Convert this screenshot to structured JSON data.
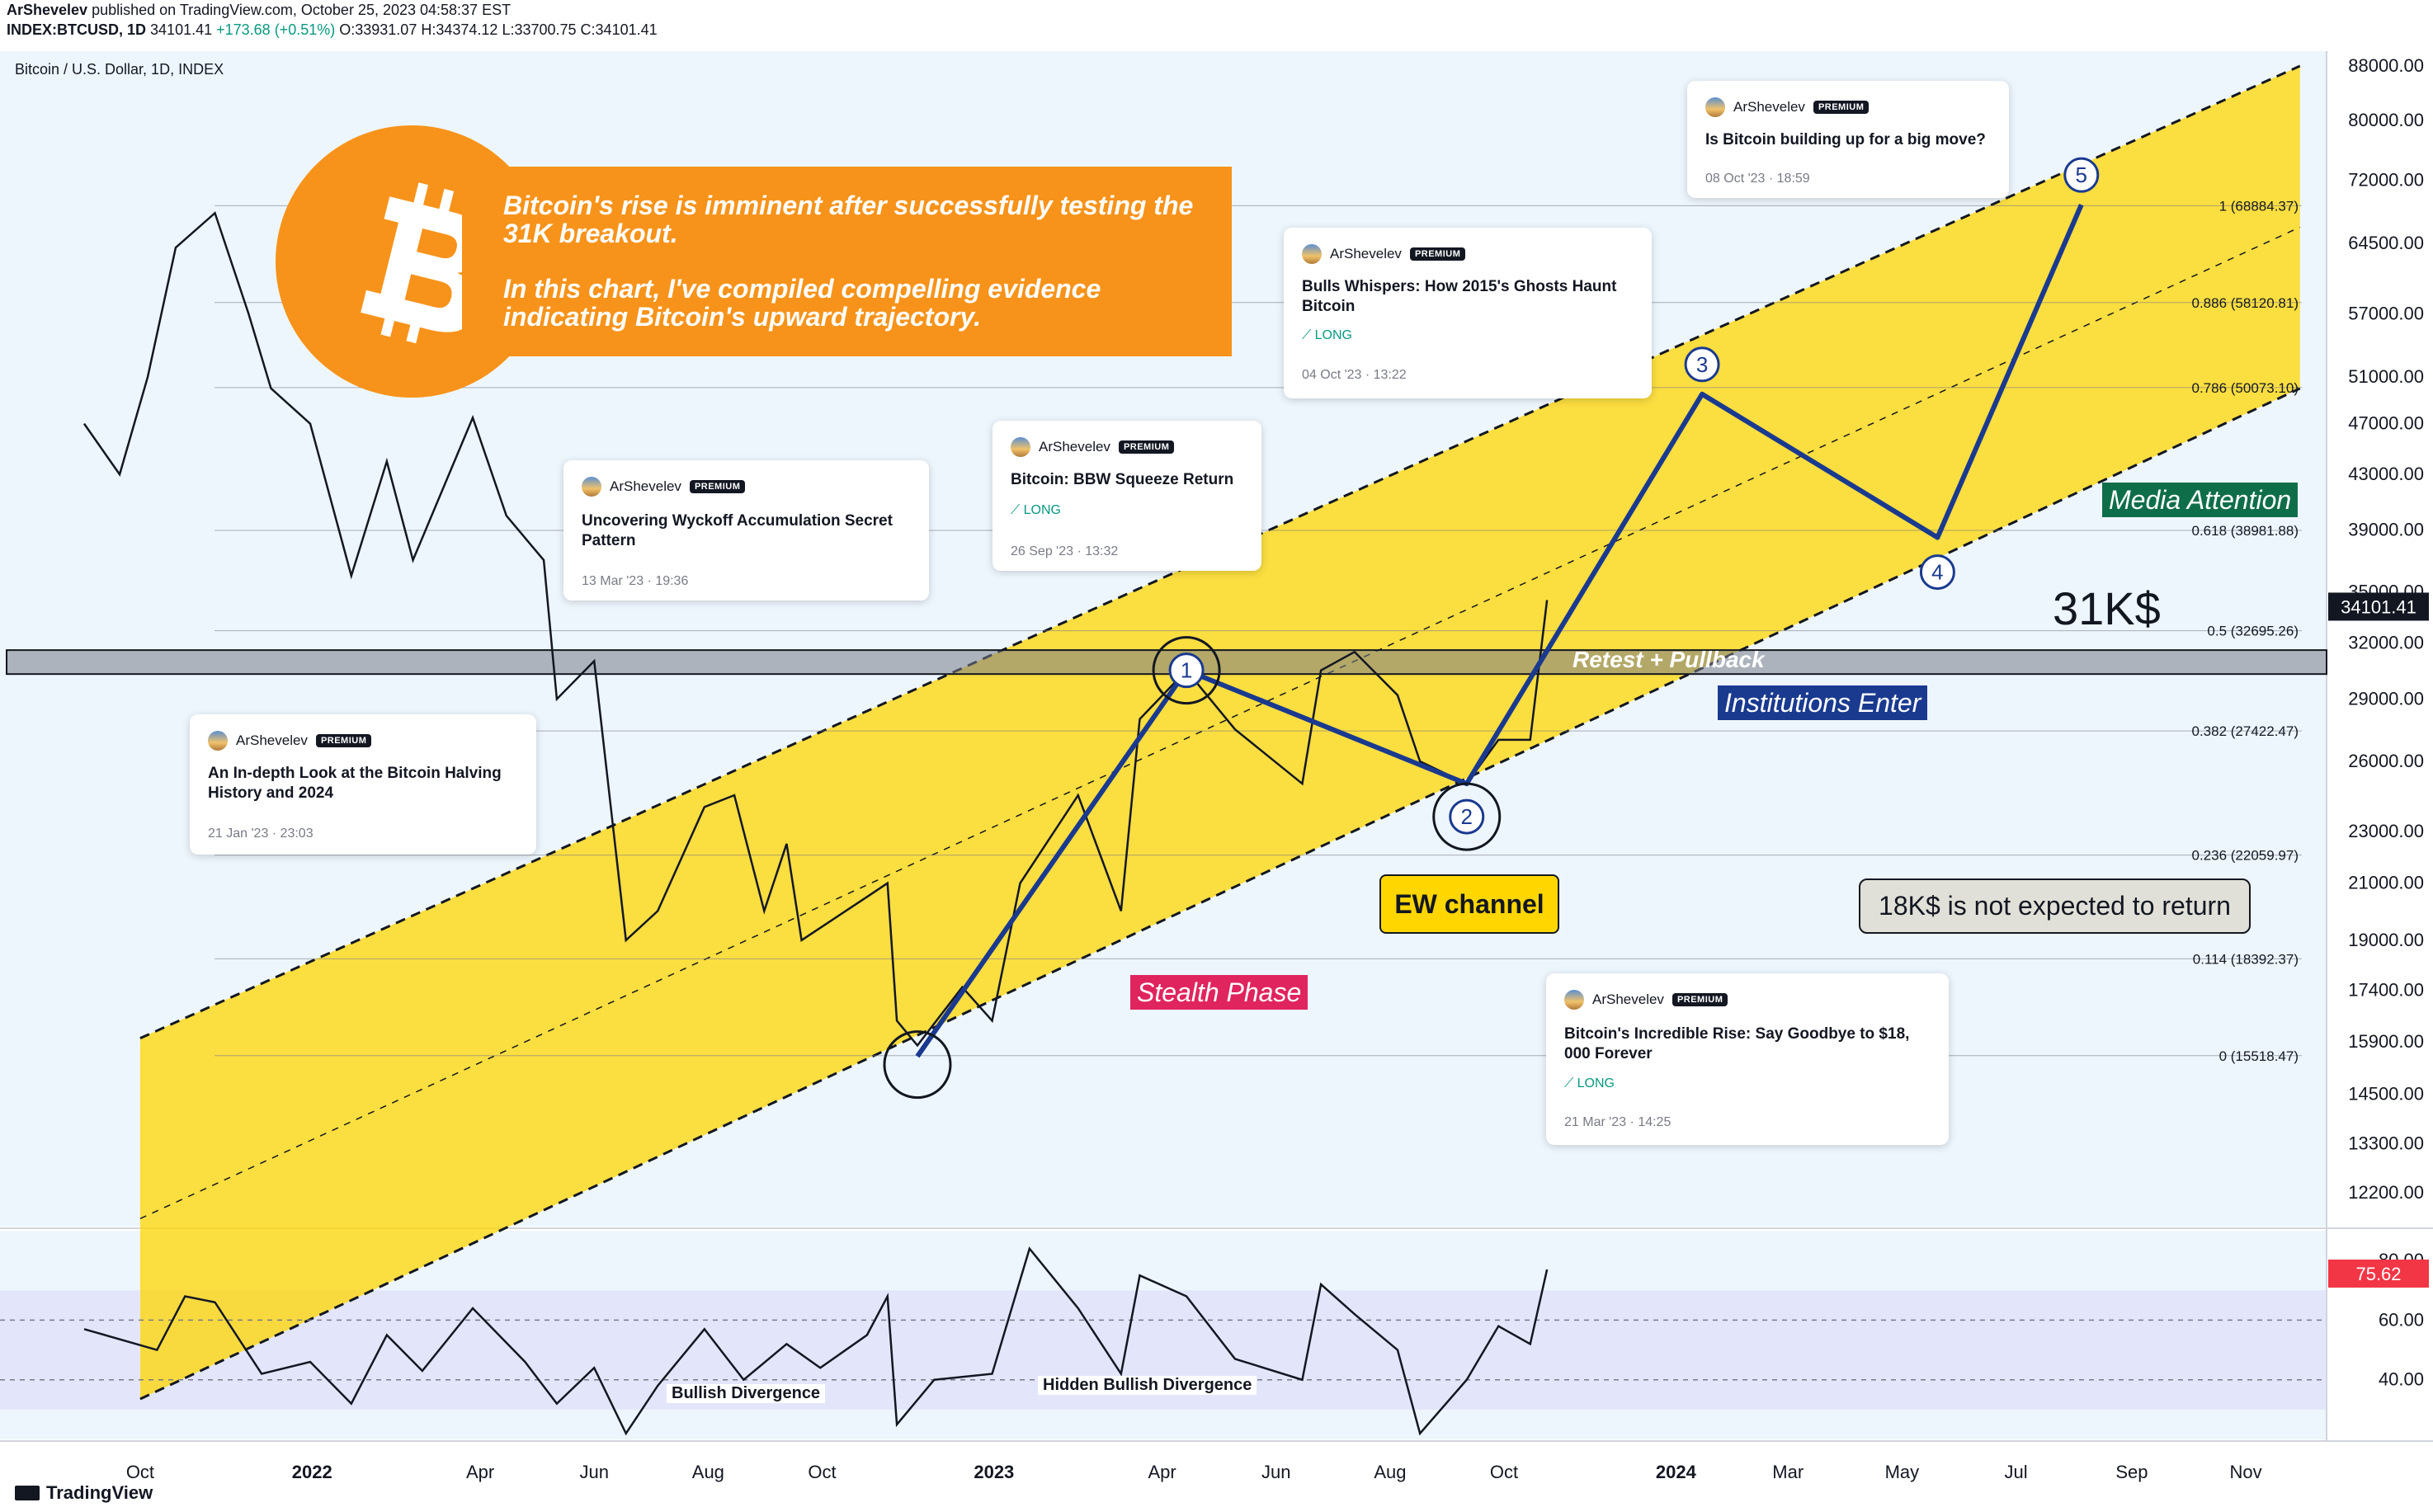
{
  "header": {
    "publisher": "ArShevelev",
    "published": "published on TradingView.com, October 25, 2023 04:58:37 EST",
    "symbol": "INDEX:BTCUSD, 1D",
    "last": "34101.41",
    "change": "+173.68 (+0.51%)",
    "open": "O:33931.07",
    "high": "H:34374.12",
    "low": "L:33700.75",
    "close": "C:34101.41"
  },
  "pane_title": "Bitcoin / U.S. Dollar, 1D, INDEX",
  "promo": {
    "line1": "Bitcoin's rise is imminent after successfully testing the 31K breakout.",
    "line2": "In this chart, I've compiled compelling evidence indicating Bitcoin's upward trajectory."
  },
  "cards": [
    {
      "author": "ArShevelev",
      "badge": "PREMIUM",
      "title": "Is Bitcoin building up for a big move?",
      "long": "",
      "date": "08 Oct '23 · 18:59"
    },
    {
      "author": "ArShevelev",
      "badge": "PREMIUM",
      "title": "Bulls Whispers: How 2015's Ghosts Haunt Bitcoin",
      "long": "LONG",
      "date": "04 Oct '23 · 13:22"
    },
    {
      "author": "ArShevelev",
      "badge": "PREMIUM",
      "title": "Bitcoin: BBW Squeeze Return",
      "long": "LONG",
      "date": "26 Sep '23 · 13:32"
    },
    {
      "author": "ArShevelev",
      "badge": "PREMIUM",
      "title": "Uncovering Wyckoff Accumulation Secret Pattern",
      "long": "",
      "date": "13 Mar '23 · 19:36"
    },
    {
      "author": "ArShevelev",
      "badge": "PREMIUM",
      "title": "An In-depth Look at the Bitcoin Halving History and 2024",
      "long": "",
      "date": "21 Jan '23 · 23:03"
    },
    {
      "author": "ArShevelev",
      "badge": "PREMIUM",
      "title": "Bitcoin's Incredible Rise: Say Goodbye to $18, 000 Forever",
      "long": "LONG",
      "date": "21 Mar '23 · 14:25"
    }
  ],
  "labels": {
    "media": "Media Attention",
    "institutions": "Institutions Enter",
    "stealth": "Stealth Phase",
    "ew_channel": "EW channel",
    "note18": "18K$ is not expected to return",
    "k31": "31K$",
    "retest": "Retest + Pullback",
    "bull_div": "Bullish Divergence",
    "hidden_div": "Hidden Bullish Divergence"
  },
  "footer": "TradingView",
  "colors": {
    "channel": "#ffd600",
    "wave": "#1a3a8f",
    "promo": "#f7931a",
    "media_bg": "#0f6e4a",
    "inst_bg": "#1a3a8f",
    "stealth_bg": "#e0245e",
    "price_tag": "#131722",
    "rsi_tag": "#f23645"
  },
  "chart_data": {
    "type": "line",
    "title": "Bitcoin / U.S. Dollar, 1D, INDEX",
    "y_scale": "log",
    "ylim": [
      11500,
      88000
    ],
    "y_ticks": [
      "88000.00",
      "80000.00",
      "72000.00",
      "64500.00",
      "57000.00",
      "51000.00",
      "47000.00",
      "43000.00",
      "39000.00",
      "35000.00",
      "32000.00",
      "29000.00",
      "26000.00",
      "23000.00",
      "21000.00",
      "19000.00",
      "17400.00",
      "15900.00",
      "14500.00",
      "13300.00",
      "12200.00"
    ],
    "x_ticks": [
      "Oct",
      "2022",
      "Apr",
      "Jun",
      "Aug",
      "Oct",
      "2023",
      "Apr",
      "Jun",
      "Aug",
      "Oct",
      "2024",
      "Mar",
      "May",
      "Jul",
      "Sep",
      "Nov"
    ],
    "x_ticks_bold": [
      "2022",
      "2023",
      "2024"
    ],
    "price_series": [
      [
        "2021-09-01",
        47000
      ],
      [
        "2021-09-20",
        43000
      ],
      [
        "2021-10-05",
        51000
      ],
      [
        "2021-10-20",
        64000
      ],
      [
        "2021-11-10",
        68000
      ],
      [
        "2021-11-28",
        57000
      ],
      [
        "2021-12-10",
        50000
      ],
      [
        "2021-12-31",
        47000
      ],
      [
        "2022-01-22",
        36000
      ],
      [
        "2022-02-10",
        44000
      ],
      [
        "2022-02-24",
        37000
      ],
      [
        "2022-03-28",
        47500
      ],
      [
        "2022-04-15",
        40000
      ],
      [
        "2022-05-05",
        37000
      ],
      [
        "2022-05-12",
        29000
      ],
      [
        "2022-06-01",
        31000
      ],
      [
        "2022-06-18",
        19000
      ],
      [
        "2022-07-05",
        20000
      ],
      [
        "2022-07-30",
        24000
      ],
      [
        "2022-08-15",
        24500
      ],
      [
        "2022-08-31",
        20000
      ],
      [
        "2022-09-12",
        22500
      ],
      [
        "2022-09-20",
        19000
      ],
      [
        "2022-10-25",
        20500
      ],
      [
        "2022-11-05",
        21000
      ],
      [
        "2022-11-10",
        16500
      ],
      [
        "2022-11-21",
        15800
      ],
      [
        "2022-12-15",
        17500
      ],
      [
        "2022-12-31",
        16500
      ],
      [
        "2023-01-15",
        21000
      ],
      [
        "2023-02-15",
        24500
      ],
      [
        "2023-03-10",
        20000
      ],
      [
        "2023-03-20",
        28000
      ],
      [
        "2023-04-14",
        30500
      ],
      [
        "2023-05-10",
        27500
      ],
      [
        "2023-06-15",
        25000
      ],
      [
        "2023-06-25",
        30500
      ],
      [
        "2023-07-13",
        31500
      ],
      [
        "2023-08-05",
        29200
      ],
      [
        "2023-08-17",
        26000
      ],
      [
        "2023-09-11",
        25000
      ],
      [
        "2023-09-28",
        27000
      ],
      [
        "2023-10-15",
        27000
      ],
      [
        "2023-10-24",
        34500
      ]
    ],
    "channel": {
      "upper": [
        [
          "2021-10-01",
          16000
        ],
        [
          "2024-11-30",
          88000
        ]
      ],
      "lower": [
        [
          "2021-10-01",
          8500
        ],
        [
          "2024-11-30",
          50000
        ]
      ]
    },
    "resistance_band": [
      30300,
      31600
    ],
    "fib_levels": [
      {
        "label": "1 (68884.37)",
        "value": 68884.37
      },
      {
        "label": "0.886 (58120.81)",
        "value": 58120.81
      },
      {
        "label": "0.786 (50073.10)",
        "value": 50073.1
      },
      {
        "label": "0.618 (38981.88)",
        "value": 38981.88
      },
      {
        "label": "0.5 (32695.26)",
        "value": 32695.26
      },
      {
        "label": "0.382 (27422.47)",
        "value": 27422.47
      },
      {
        "label": "0.236 (22059.97)",
        "value": 22059.97
      },
      {
        "label": "0.114 (18392.37)",
        "value": 18392.37
      },
      {
        "label": "0 (15518.47)",
        "value": 15518.47
      }
    ],
    "wave_points": [
      {
        "label": "",
        "date": "2022-11-21",
        "value": 15500
      },
      {
        "label": "1",
        "date": "2023-04-14",
        "value": 30500
      },
      {
        "label": "2",
        "date": "2023-09-11",
        "value": 25000
      },
      {
        "label": "3",
        "date": "2024-01-15",
        "value": 49500
      },
      {
        "label": "4",
        "date": "2024-05-20",
        "value": 38500
      },
      {
        "label": "5",
        "date": "2024-08-05",
        "value": 69000
      }
    ],
    "last_price": "34101.41",
    "rsi": {
      "last": "75.62",
      "y_ticks": [
        "80.00",
        "60.00",
        "40.00"
      ],
      "series": [
        [
          "2021-09-01",
          57
        ],
        [
          "2021-10-10",
          50
        ],
        [
          "2021-10-25",
          68
        ],
        [
          "2021-11-10",
          66
        ],
        [
          "2021-12-05",
          42
        ],
        [
          "2021-12-31",
          46
        ],
        [
          "2022-01-22",
          32
        ],
        [
          "2022-02-10",
          55
        ],
        [
          "2022-03-01",
          43
        ],
        [
          "2022-03-28",
          64
        ],
        [
          "2022-04-25",
          46
        ],
        [
          "2022-05-12",
          32
        ],
        [
          "2022-06-01",
          44
        ],
        [
          "2022-06-18",
          22
        ],
        [
          "2022-07-05",
          38
        ],
        [
          "2022-07-30",
          57
        ],
        [
          "2022-08-20",
          40
        ],
        [
          "2022-09-12",
          52
        ],
        [
          "2022-09-30",
          44
        ],
        [
          "2022-10-25",
          55
        ],
        [
          "2022-11-05",
          68
        ],
        [
          "2022-11-10",
          25
        ],
        [
          "2022-11-30",
          40
        ],
        [
          "2022-12-31",
          42
        ],
        [
          "2023-01-20",
          84
        ],
        [
          "2023-02-15",
          64
        ],
        [
          "2023-03-10",
          42
        ],
        [
          "2023-03-20",
          75
        ],
        [
          "2023-04-14",
          68
        ],
        [
          "2023-05-10",
          47
        ],
        [
          "2023-06-15",
          40
        ],
        [
          "2023-06-25",
          72
        ],
        [
          "2023-07-13",
          62
        ],
        [
          "2023-08-05",
          50
        ],
        [
          "2023-08-17",
          22
        ],
        [
          "2023-09-11",
          40
        ],
        [
          "2023-09-28",
          58
        ],
        [
          "2023-10-15",
          52
        ],
        [
          "2023-10-24",
          77
        ]
      ]
    }
  }
}
